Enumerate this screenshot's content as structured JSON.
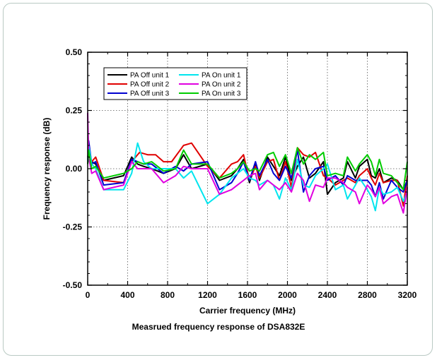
{
  "caption": "Measrued frequency response of DSA832E",
  "chart_data": {
    "type": "line",
    "xlabel": "Carrier frequency (MHz)",
    "ylabel": "Frequency response (dB)",
    "xlim": [
      0,
      3200
    ],
    "ylim": [
      -0.5,
      0.5
    ],
    "xticks": [
      0,
      400,
      800,
      1200,
      1600,
      2000,
      2400,
      2800,
      3200
    ],
    "yticks": [
      -0.5,
      -0.25,
      0.0,
      0.25,
      0.5
    ],
    "ytick_labels": [
      "-0.50",
      "-0.25",
      "0.00",
      "0.25",
      "0.50"
    ],
    "grid": true,
    "legend_position": "top-left",
    "series": [
      {
        "name": "PA Off unit 1",
        "color": "#000000",
        "x": [
          0,
          10,
          40,
          80,
          160,
          360,
          440,
          500,
          560,
          640,
          760,
          880,
          960,
          1040,
          1200,
          1320,
          1440,
          1500,
          1560,
          1620,
          1680,
          1720,
          1800,
          1860,
          1920,
          1980,
          2040,
          2100,
          2160,
          2220,
          2280,
          2360,
          2400,
          2480,
          2560,
          2600,
          2680,
          2720,
          2800,
          2840,
          2880,
          2920,
          2960,
          3040,
          3100,
          3160,
          3200
        ],
        "y": [
          0.02,
          0.06,
          0.03,
          0.02,
          -0.05,
          -0.03,
          0.05,
          0.02,
          0.01,
          0.0,
          -0.02,
          0.0,
          0.06,
          0.0,
          0.02,
          -0.05,
          -0.03,
          0.0,
          0.04,
          -0.06,
          0.02,
          -0.05,
          0.05,
          0.01,
          -0.03,
          0.05,
          -0.05,
          0.01,
          0.05,
          -0.04,
          -0.02,
          0.03,
          -0.11,
          -0.06,
          -0.04,
          0.03,
          -0.04,
          0.01,
          0.04,
          -0.03,
          -0.04,
          0.0,
          -0.06,
          -0.04,
          -0.05,
          -0.09,
          -0.05
        ]
      },
      {
        "name": "PA Off unit 2",
        "color": "#e00000",
        "x": [
          0,
          10,
          40,
          80,
          160,
          360,
          440,
          520,
          600,
          680,
          760,
          840,
          960,
          1040,
          1200,
          1320,
          1440,
          1500,
          1560,
          1620,
          1680,
          1720,
          1800,
          1860,
          1920,
          1980,
          2040,
          2100,
          2160,
          2220,
          2280,
          2360,
          2400,
          2480,
          2560,
          2600,
          2680,
          2720,
          2800,
          2840,
          2880,
          2920,
          2960,
          3040,
          3100,
          3160,
          3200
        ],
        "y": [
          0.05,
          0.07,
          0.03,
          0.05,
          -0.05,
          -0.06,
          0.03,
          0.07,
          0.06,
          0.06,
          0.03,
          0.03,
          0.1,
          0.11,
          0.01,
          -0.04,
          0.02,
          0.03,
          0.06,
          -0.05,
          0.01,
          -0.04,
          0.03,
          0.04,
          -0.05,
          0.03,
          -0.08,
          0.09,
          0.06,
          0.05,
          0.07,
          -0.03,
          -0.04,
          -0.07,
          -0.05,
          -0.04,
          -0.06,
          -0.03,
          0.0,
          -0.04,
          -0.07,
          -0.02,
          -0.06,
          -0.05,
          -0.05,
          -0.16,
          -0.03
        ]
      },
      {
        "name": "PA Off unit 3",
        "color": "#0000d0",
        "x": [
          0,
          10,
          40,
          80,
          160,
          360,
          440,
          500,
          560,
          640,
          760,
          880,
          960,
          1040,
          1200,
          1320,
          1440,
          1500,
          1560,
          1620,
          1680,
          1720,
          1800,
          1860,
          1920,
          1980,
          2040,
          2100,
          2160,
          2220,
          2280,
          2360,
          2400,
          2480,
          2560,
          2600,
          2680,
          2720,
          2800,
          2840,
          2880,
          2920,
          2960,
          3040,
          3100,
          3160,
          3200
        ],
        "y": [
          0.03,
          0.12,
          0.02,
          0.03,
          -0.07,
          -0.06,
          0.04,
          0.03,
          0.02,
          0.02,
          -0.02,
          0.01,
          -0.01,
          0.02,
          0.03,
          -0.09,
          -0.06,
          -0.02,
          0.03,
          -0.05,
          0.03,
          -0.03,
          0.04,
          -0.02,
          -0.05,
          0.01,
          -0.04,
          0.08,
          -0.1,
          -0.03,
          0.0,
          0.01,
          -0.05,
          -0.03,
          -0.07,
          -0.03,
          -0.05,
          -0.05,
          -0.05,
          -0.07,
          -0.12,
          -0.06,
          -0.13,
          -0.05,
          -0.08,
          -0.1,
          -0.05
        ]
      },
      {
        "name": "PA On unit 1",
        "color": "#00e5ee",
        "x": [
          0,
          10,
          40,
          80,
          160,
          360,
          440,
          500,
          560,
          640,
          760,
          880,
          960,
          1040,
          1200,
          1320,
          1440,
          1500,
          1560,
          1620,
          1680,
          1720,
          1800,
          1860,
          1920,
          1980,
          2040,
          2100,
          2160,
          2220,
          2280,
          2360,
          2400,
          2480,
          2560,
          2600,
          2680,
          2720,
          2800,
          2840,
          2880,
          2920,
          2960,
          3040,
          3100,
          3160,
          3200
        ],
        "y": [
          0.03,
          0.1,
          0.02,
          0.0,
          -0.09,
          -0.09,
          -0.02,
          0.11,
          0.03,
          0.0,
          0.0,
          0.0,
          -0.04,
          -0.01,
          -0.15,
          -0.11,
          -0.04,
          -0.02,
          0.0,
          -0.04,
          -0.05,
          -0.07,
          -0.05,
          -0.07,
          -0.13,
          -0.04,
          -0.09,
          0.04,
          -0.07,
          -0.08,
          -0.03,
          0.0,
          0.02,
          -0.09,
          -0.07,
          -0.13,
          -0.07,
          -0.04,
          -0.09,
          -0.12,
          -0.18,
          -0.08,
          -0.11,
          -0.1,
          -0.08,
          -0.14,
          -0.1
        ]
      },
      {
        "name": "PA On unit 2",
        "color": "#e000e0",
        "x": [
          0,
          10,
          40,
          80,
          160,
          360,
          440,
          500,
          560,
          640,
          760,
          880,
          960,
          1040,
          1200,
          1320,
          1440,
          1500,
          1560,
          1620,
          1680,
          1720,
          1800,
          1860,
          1920,
          1980,
          2040,
          2100,
          2160,
          2220,
          2280,
          2360,
          2400,
          2480,
          2560,
          2600,
          2680,
          2720,
          2800,
          2840,
          2880,
          2920,
          2960,
          3040,
          3100,
          3160,
          3200
        ],
        "y": [
          0.24,
          0.05,
          -0.02,
          -0.01,
          -0.09,
          -0.07,
          0.03,
          0.0,
          0.0,
          0.0,
          -0.06,
          -0.03,
          0.01,
          0.0,
          0.0,
          -0.11,
          -0.09,
          -0.07,
          -0.05,
          -0.03,
          -0.02,
          -0.09,
          -0.05,
          -0.07,
          -0.09,
          -0.06,
          -0.1,
          -0.02,
          -0.05,
          -0.14,
          -0.07,
          -0.08,
          -0.04,
          -0.04,
          -0.06,
          -0.08,
          -0.1,
          -0.15,
          -0.07,
          -0.09,
          -0.12,
          -0.08,
          -0.15,
          -0.12,
          -0.11,
          -0.19,
          -0.08
        ]
      },
      {
        "name": "PA On unit 3",
        "color": "#00cc00",
        "x": [
          0,
          10,
          40,
          80,
          160,
          360,
          440,
          500,
          560,
          640,
          760,
          880,
          960,
          1040,
          1200,
          1320,
          1440,
          1500,
          1560,
          1620,
          1680,
          1720,
          1800,
          1860,
          1920,
          1980,
          2040,
          2100,
          2160,
          2220,
          2280,
          2360,
          2400,
          2480,
          2560,
          2600,
          2680,
          2720,
          2800,
          2840,
          2880,
          2920,
          2960,
          3040,
          3100,
          3160,
          3200
        ],
        "y": [
          0.02,
          0.08,
          0.0,
          0.01,
          -0.04,
          -0.02,
          0.0,
          0.03,
          0.02,
          0.03,
          -0.01,
          0.0,
          0.08,
          0.02,
          0.02,
          -0.04,
          -0.02,
          0.0,
          0.03,
          -0.01,
          0.0,
          -0.01,
          0.06,
          0.07,
          0.01,
          0.06,
          -0.02,
          0.09,
          0.02,
          0.06,
          0.04,
          0.07,
          -0.03,
          -0.02,
          -0.03,
          0.05,
          -0.01,
          0.02,
          0.06,
          0.03,
          -0.03,
          0.04,
          -0.02,
          -0.03,
          -0.06,
          -0.09,
          0.03
        ]
      }
    ]
  }
}
